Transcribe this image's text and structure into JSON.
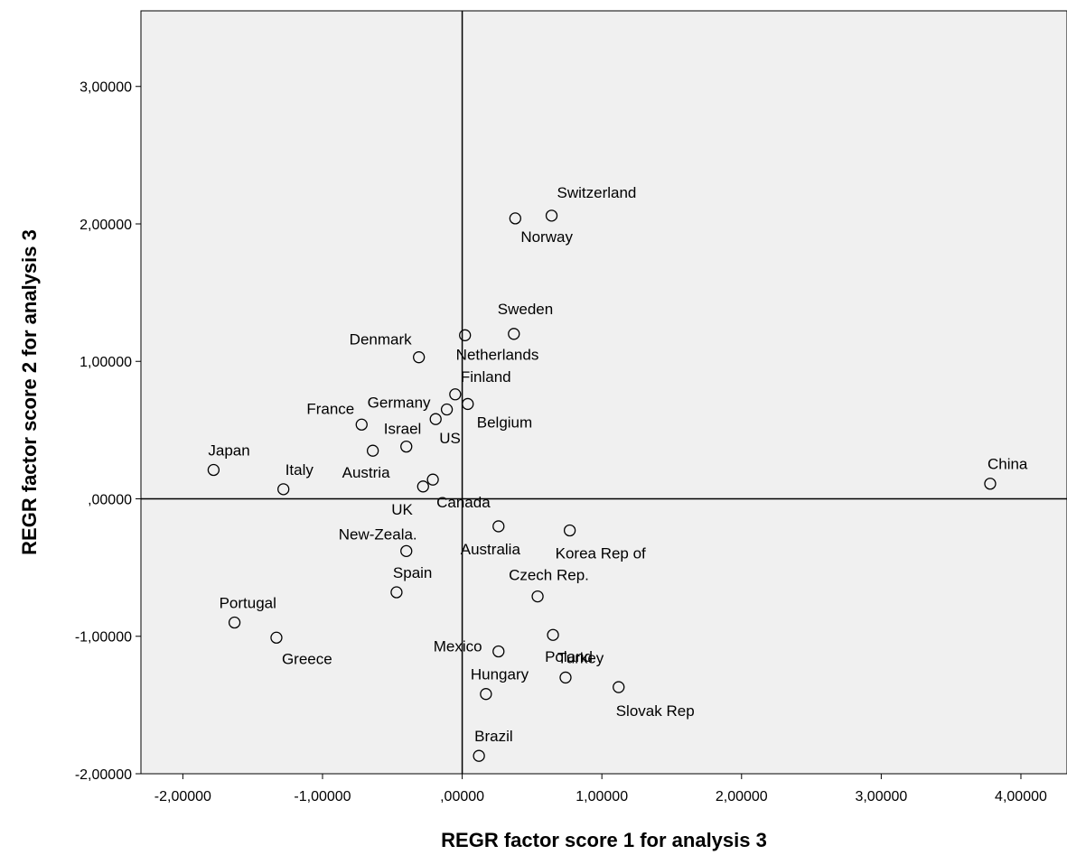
{
  "chart_data": {
    "type": "scatter",
    "xlabel": "REGR factor score   1 for analysis 3",
    "ylabel": "REGR factor score   2 for analysis 3",
    "xlim": [
      -2.3,
      4.33
    ],
    "ylim": [
      -2.0,
      3.55
    ],
    "x_ticks": [
      -2,
      -1,
      0,
      1,
      2,
      3,
      4
    ],
    "x_tick_labels": [
      "-2,00000",
      "-1,00000",
      ",00000",
      "1,00000",
      "2,00000",
      "3,00000",
      "4,00000"
    ],
    "y_ticks": [
      -2,
      -1,
      0,
      1,
      2,
      3
    ],
    "y_tick_labels": [
      "-2,00000",
      "-1,00000",
      ",00000",
      "1,00000",
      "2,00000",
      "3,00000"
    ],
    "reference_lines": {
      "x": 0,
      "y": 0
    },
    "grid": false,
    "plot_background": "#f0f0f0",
    "marker": "open-circle",
    "points": [
      {
        "label": "Switzerland",
        "x": 0.64,
        "y": 2.06
      },
      {
        "label": "Norway",
        "x": 0.38,
        "y": 2.04
      },
      {
        "label": "Sweden",
        "x": 0.37,
        "y": 1.2
      },
      {
        "label": "Netherlands",
        "x": 0.02,
        "y": 1.19
      },
      {
        "label": "Denmark",
        "x": -0.31,
        "y": 1.03
      },
      {
        "label": "Finland",
        "x": -0.05,
        "y": 0.76
      },
      {
        "label": "Germany",
        "x": -0.11,
        "y": 0.65
      },
      {
        "label": "Belgium",
        "x": 0.04,
        "y": 0.69
      },
      {
        "label": "France",
        "x": -0.72,
        "y": 0.54
      },
      {
        "label": "US",
        "x": -0.19,
        "y": 0.58
      },
      {
        "label": "Israel",
        "x": -0.4,
        "y": 0.38
      },
      {
        "label": "Austria",
        "x": -0.64,
        "y": 0.35
      },
      {
        "label": "Japan",
        "x": -1.78,
        "y": 0.21
      },
      {
        "label": "Italy",
        "x": -1.28,
        "y": 0.07
      },
      {
        "label": "Canada",
        "x": -0.21,
        "y": 0.14
      },
      {
        "label": "UK",
        "x": -0.28,
        "y": 0.09
      },
      {
        "label": "China",
        "x": 3.78,
        "y": 0.11
      },
      {
        "label": "Australia",
        "x": 0.26,
        "y": -0.2
      },
      {
        "label": "Korea Rep of",
        "x": 0.77,
        "y": -0.23
      },
      {
        "label": "New-Zeala.",
        "x": -0.4,
        "y": -0.38
      },
      {
        "label": "Spain",
        "x": -0.47,
        "y": -0.68
      },
      {
        "label": "Czech Rep.",
        "x": 0.54,
        "y": -0.71
      },
      {
        "label": "Portugal",
        "x": -1.63,
        "y": -0.9
      },
      {
        "label": "Poland",
        "x": 0.65,
        "y": -0.99
      },
      {
        "label": "Greece",
        "x": -1.33,
        "y": -1.01
      },
      {
        "label": "Mexico",
        "x": 0.26,
        "y": -1.11
      },
      {
        "label": "Turkey",
        "x": 0.74,
        "y": -1.3
      },
      {
        "label": "Slovak Rep",
        "x": 1.12,
        "y": -1.37
      },
      {
        "label": "Hungary",
        "x": 0.17,
        "y": -1.42
      },
      {
        "label": "Brazil",
        "x": 0.12,
        "y": -1.87
      }
    ]
  }
}
